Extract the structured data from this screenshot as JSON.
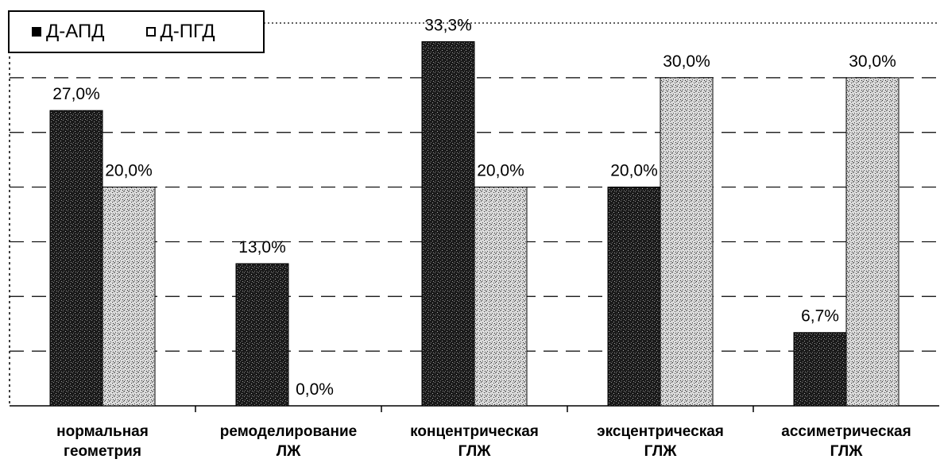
{
  "chart_data": {
    "type": "bar",
    "categories": [
      [
        "нормальная",
        "геометрия"
      ],
      [
        "ремоделирование",
        "ЛЖ"
      ],
      [
        "концентрическая",
        "ГЛЖ"
      ],
      [
        "эксцентрическая",
        "ГЛЖ"
      ],
      [
        "ассиметрическая",
        "ГЛЖ"
      ]
    ],
    "series": [
      {
        "name": "Д-АПД",
        "values": [
          27.0,
          13.0,
          33.3,
          20.0,
          6.7
        ],
        "labels": [
          "27,0%",
          "13,0%",
          "33,3%",
          "20,0%",
          "6,7%"
        ],
        "color": "#111111"
      },
      {
        "name": "Д-ПГД",
        "values": [
          20.0,
          0.0,
          20.0,
          30.0,
          30.0
        ],
        "labels": [
          "20,0%",
          "0,0%",
          "20,0%",
          "30,0%",
          "30,0%"
        ],
        "color": "#ffffff"
      }
    ],
    "ylim": [
      0,
      35
    ],
    "grid": true,
    "legend_position": "top-left"
  },
  "legend": {
    "series1": "Д-АПД",
    "series2": "Д-ПГД"
  }
}
